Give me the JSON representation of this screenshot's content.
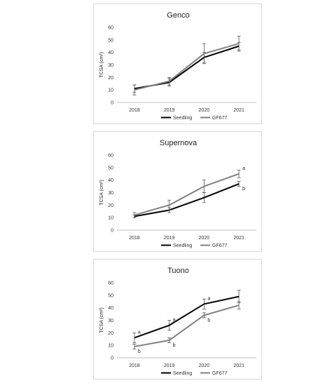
{
  "chart_data": [
    {
      "type": "line",
      "title": "Genco",
      "ylabel": "TCSA (cm²)",
      "xlabel": "",
      "categories": [
        "2018",
        "2019",
        "2020",
        "2021"
      ],
      "ylim": [
        0,
        60
      ],
      "yticks": [
        0,
        10,
        20,
        30,
        40,
        50,
        60
      ],
      "grid": false,
      "legend_position": "bottom",
      "series": [
        {
          "name": "Seedling",
          "color": "#000000",
          "values": [
            11,
            16,
            36,
            45
          ],
          "errors": [
            3,
            3,
            4,
            3
          ],
          "labels": [
            "",
            "",
            "",
            ""
          ]
        },
        {
          "name": "GF677",
          "color": "#808080",
          "values": [
            10,
            17,
            39,
            47
          ],
          "errors": [
            4,
            3,
            8,
            6
          ],
          "labels": [
            "",
            "",
            "",
            ""
          ]
        }
      ]
    },
    {
      "type": "line",
      "title": "Supernova",
      "ylabel": "TCSA (cm²)",
      "xlabel": "",
      "categories": [
        "2018",
        "2019",
        "2020",
        "2021"
      ],
      "ylim": [
        0,
        60
      ],
      "yticks": [
        0,
        10,
        20,
        30,
        40,
        50,
        60
      ],
      "grid": false,
      "legend_position": "bottom",
      "series": [
        {
          "name": "Seedling",
          "color": "#000000",
          "values": [
            11,
            16,
            26,
            37
          ],
          "errors": [
            1,
            2,
            4,
            2
          ],
          "labels": [
            "",
            "",
            "",
            "b"
          ]
        },
        {
          "name": "GF677",
          "color": "#808080",
          "values": [
            12,
            20,
            35,
            45
          ],
          "errors": [
            2,
            4,
            5,
            3
          ],
          "labels": [
            "",
            "",
            "",
            "a"
          ]
        }
      ]
    },
    {
      "type": "line",
      "title": "Tuono",
      "ylabel": "TCSA (cm²)",
      "xlabel": "",
      "categories": [
        "2018",
        "2019",
        "2020",
        "2021"
      ],
      "ylim": [
        0,
        60
      ],
      "yticks": [
        0,
        10,
        20,
        30,
        40,
        50,
        60
      ],
      "grid": false,
      "legend_position": "bottom",
      "series": [
        {
          "name": "Seedling",
          "color": "#000000",
          "values": [
            16,
            26,
            43,
            49
          ],
          "errors": [
            4,
            4,
            4,
            5
          ],
          "labels": [
            "a",
            "a",
            "a",
            ""
          ]
        },
        {
          "name": "GF677",
          "color": "#808080",
          "values": [
            9,
            14,
            34,
            42
          ],
          "errors": [
            2,
            2,
            2,
            3
          ],
          "labels": [
            "b",
            "b",
            "b",
            ""
          ]
        }
      ]
    }
  ]
}
